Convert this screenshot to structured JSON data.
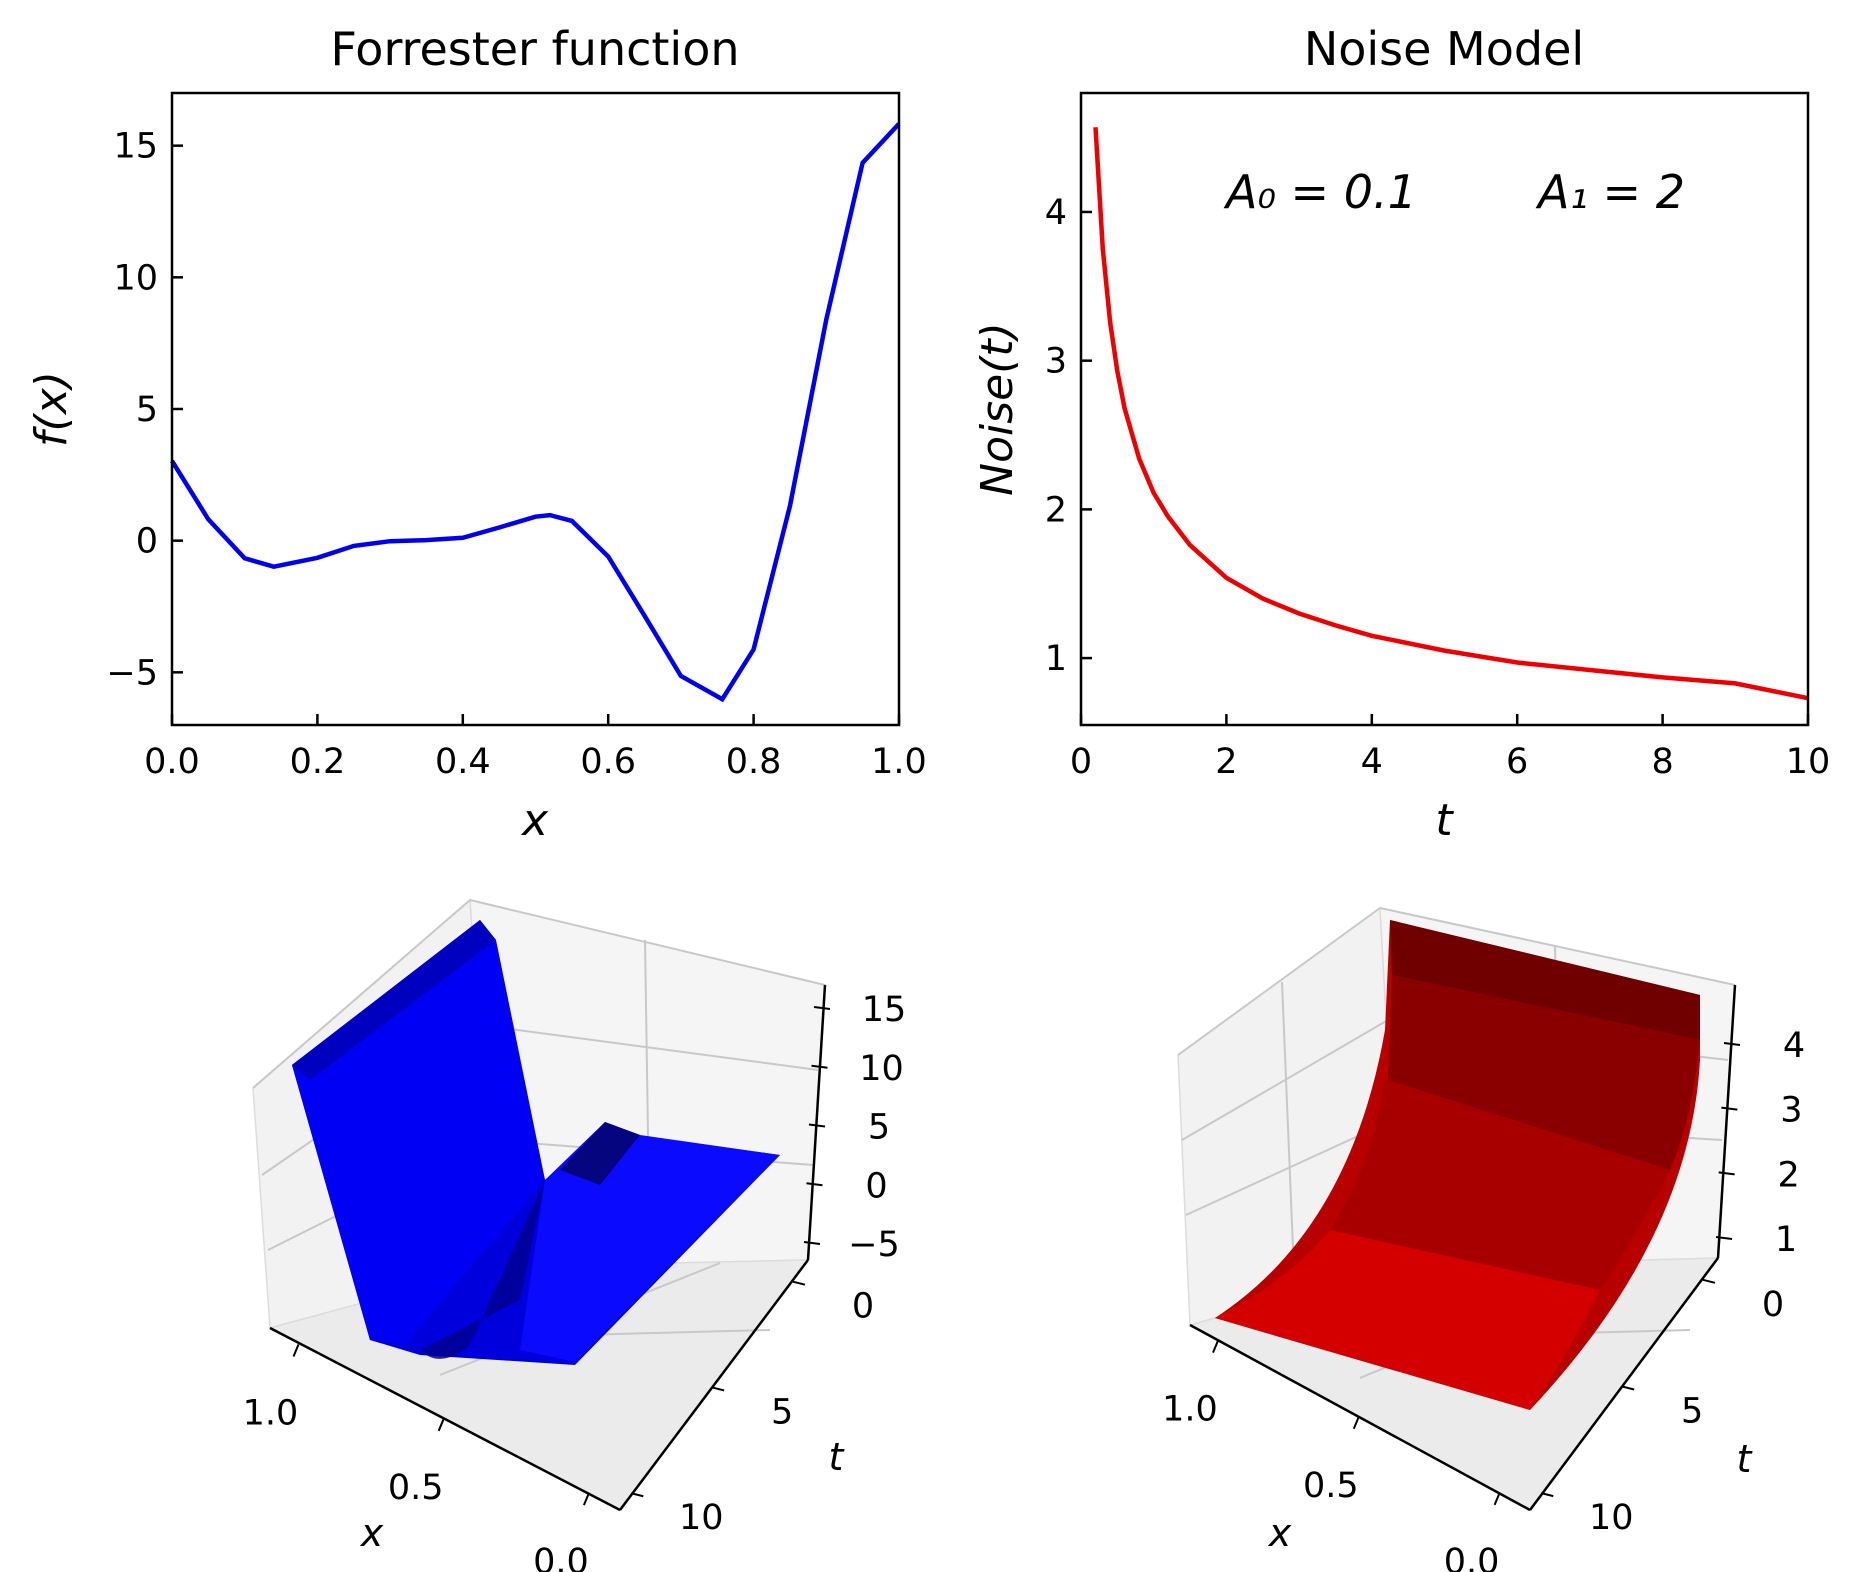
{
  "chart_data": [
    {
      "type": "line",
      "title": "Forrester function",
      "xlabel": "x",
      "ylabel": "f(x)",
      "xlim": [
        0,
        1
      ],
      "ylim": [
        -7,
        17
      ],
      "xticks": [
        "0.0",
        "0.2",
        "0.4",
        "0.6",
        "0.8",
        "1.0"
      ],
      "yticks": [
        "−5",
        "0",
        "5",
        "10",
        "15"
      ],
      "grid": false,
      "color": "#0000ee",
      "series": [
        {
          "x": [
            0.0,
            0.05,
            0.1,
            0.14,
            0.2,
            0.25,
            0.3,
            0.35,
            0.4,
            0.45,
            0.5,
            0.52,
            0.55,
            0.6,
            0.65,
            0.7,
            0.757,
            0.8,
            0.85,
            0.9,
            0.95,
            1.0
          ],
          "y": [
            3.03,
            0.81,
            -0.67,
            -0.99,
            -0.65,
            -0.2,
            -0.02,
            0.02,
            0.11,
            0.5,
            0.91,
            0.97,
            0.75,
            -0.6,
            -2.85,
            -5.14,
            -6.02,
            -4.13,
            1.31,
            8.4,
            14.35,
            15.83
          ]
        }
      ]
    },
    {
      "type": "line",
      "title": "Noise Model",
      "xlabel": "t",
      "ylabel": "Noise(t)",
      "xlim": [
        0,
        10
      ],
      "ylim": [
        0.55,
        4.8
      ],
      "xticks": [
        "0",
        "2",
        "4",
        "6",
        "8",
        "10"
      ],
      "yticks": [
        "1",
        "2",
        "3",
        "4"
      ],
      "grid": false,
      "color": "#ee0000",
      "annotations": [
        "A₀ = 0.1",
        "A₁ = 2"
      ],
      "series": [
        {
          "x": [
            0.2,
            0.3,
            0.4,
            0.5,
            0.6,
            0.8,
            1.0,
            1.2,
            1.5,
            2.0,
            2.5,
            3.0,
            3.5,
            4.0,
            5.0,
            6.0,
            7.0,
            8.0,
            9.0,
            10.0
          ],
          "y": [
            4.57,
            3.75,
            3.26,
            2.93,
            2.68,
            2.34,
            2.11,
            1.95,
            1.76,
            1.54,
            1.4,
            1.3,
            1.22,
            1.15,
            1.05,
            0.97,
            0.92,
            0.87,
            0.83,
            0.73
          ]
        }
      ]
    },
    {
      "type": "surface",
      "xlabel": "x",
      "ylabel": "t",
      "xticks": [
        "1.0",
        "0.5",
        "0.0"
      ],
      "tticks": [
        "0",
        "5",
        "10"
      ],
      "zticks": [
        "15",
        "10",
        "5",
        "0",
        "−5"
      ],
      "color": "#0000ff"
    },
    {
      "type": "surface",
      "xlabel": "x",
      "ylabel": "t",
      "xticks": [
        "1.0",
        "0.5",
        "0.0"
      ],
      "tticks": [
        "0",
        "5",
        "10"
      ],
      "zticks": [
        "4",
        "3",
        "2",
        "1"
      ],
      "color": "#cc0000"
    }
  ]
}
